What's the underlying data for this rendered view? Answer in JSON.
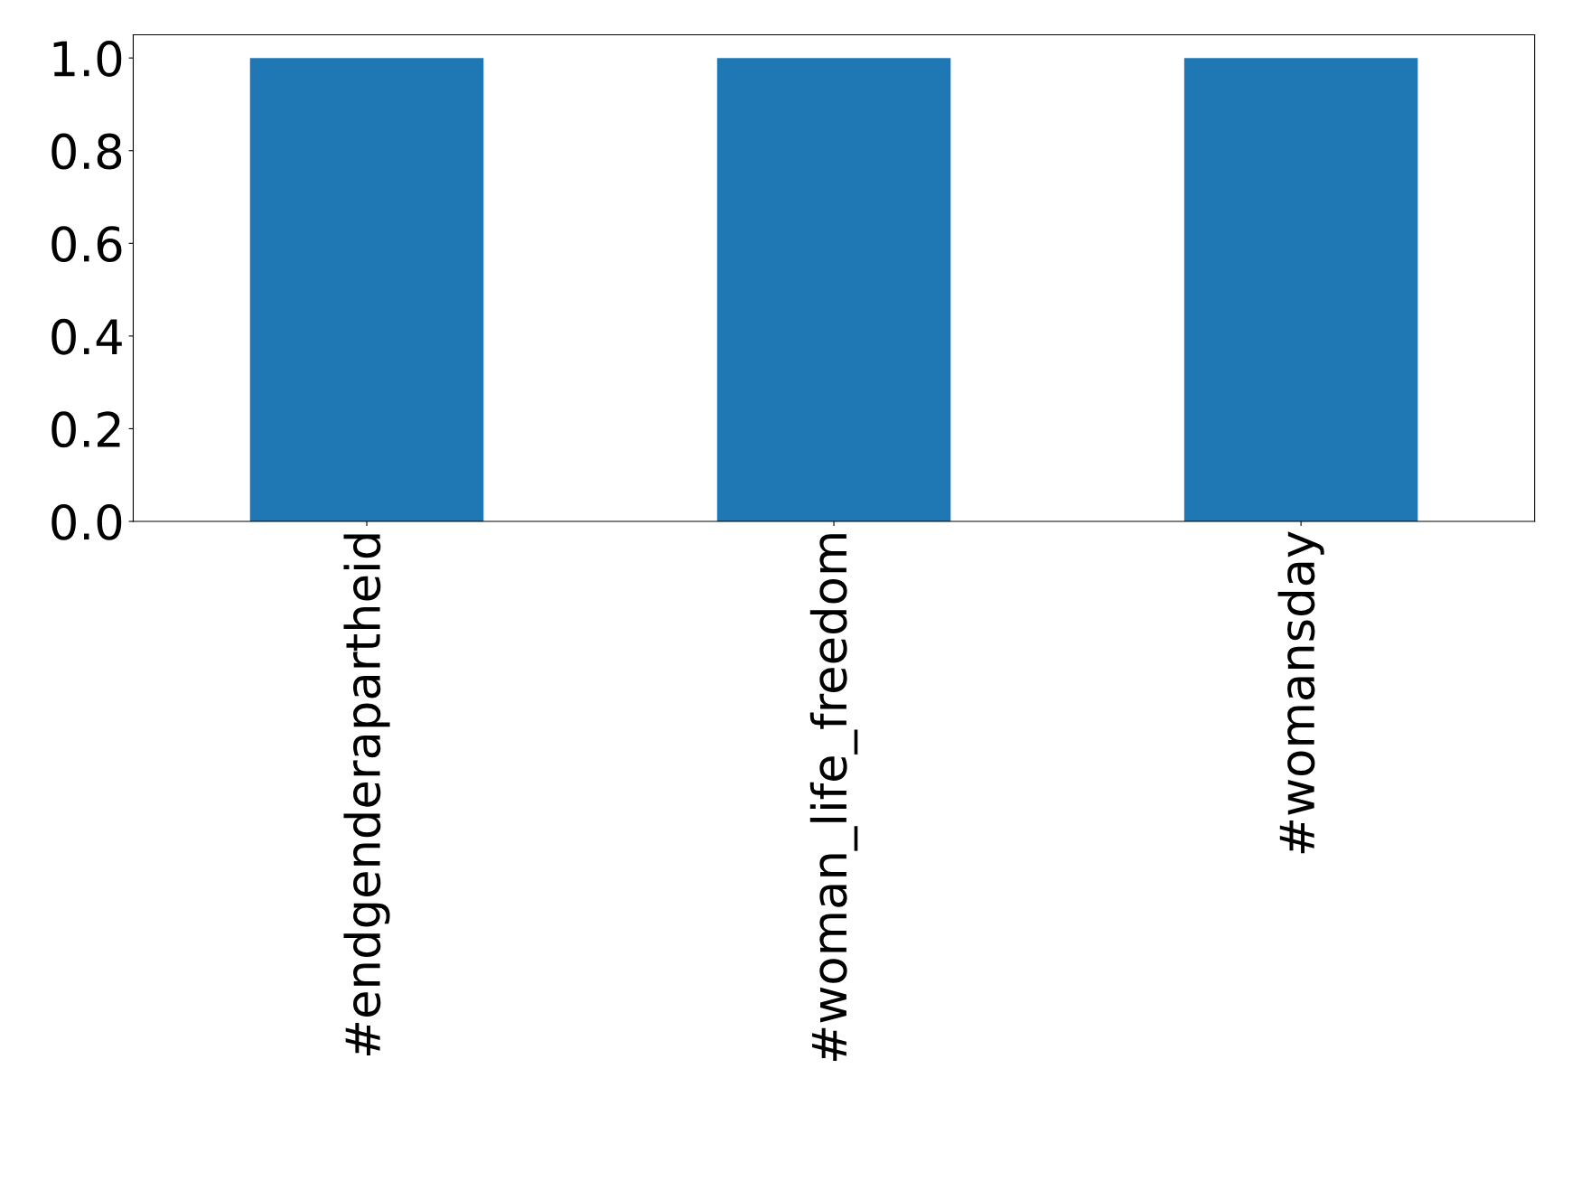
{
  "chart_data": {
    "type": "bar",
    "categories": [
      "#endgenderapartheid",
      "#woman_life_freedom",
      "#womansday"
    ],
    "values": [
      1.0,
      1.0,
      1.0
    ],
    "color": "#1f77b4",
    "ylim": [
      0,
      1.05
    ],
    "yticks": [
      {
        "value": 0,
        "label": "0.0"
      },
      {
        "value": 0.2,
        "label": "0.2"
      },
      {
        "value": 0.4,
        "label": "0.4"
      },
      {
        "value": 0.6,
        "label": "0.6"
      },
      {
        "value": 0.8,
        "label": "0.8"
      },
      {
        "value": 1.0,
        "label": "1.0"
      }
    ],
    "grid": false,
    "legend": false
  }
}
